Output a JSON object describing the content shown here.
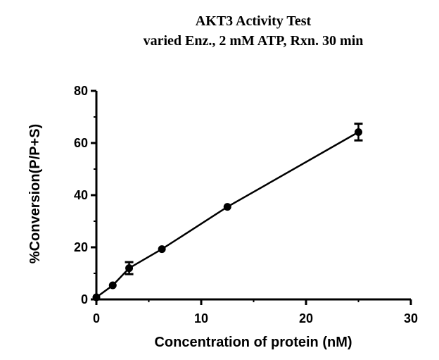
{
  "chart_data": {
    "type": "scatter",
    "title": "AKT3 Activity Test",
    "subtitle": "varied Enz., 2 mM ATP, Rxn. 30 min",
    "xlabel": "Concentration of protein (nM)",
    "ylabel": "%Conversion(P/P+S)",
    "xlim": [
      0,
      30
    ],
    "ylim": [
      0,
      80
    ],
    "xticks": [
      "0",
      "10",
      "20",
      "30"
    ],
    "yticks": [
      "0",
      "20",
      "40",
      "60",
      "80"
    ],
    "grid": false,
    "legend": "none",
    "series": [
      {
        "x": [
          0,
          1.5625,
          3.125,
          6.25,
          12.5,
          25
        ],
        "y": [
          0.8,
          5.4,
          12.0,
          19.3,
          35.5,
          64.2
        ],
        "error": [
          0.3,
          0.4,
          2.3,
          0.5,
          0.6,
          3.2
        ],
        "color": "#000000"
      }
    ]
  }
}
